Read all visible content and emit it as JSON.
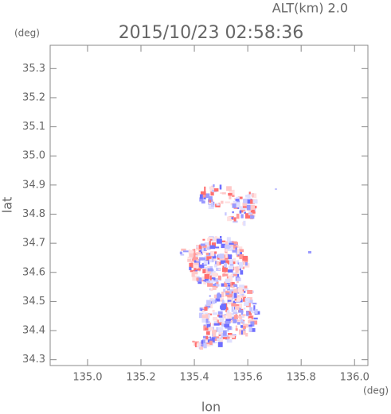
{
  "chart_data": {
    "type": "map",
    "title": "2015/10/23 02:58:36",
    "subtitle": "ALT(km) 2.0",
    "x_label": "lon",
    "y_label": "lat",
    "x_unit": "(deg)",
    "y_unit": "(deg)",
    "xlim": [
      134.86,
      136.05
    ],
    "xticks": [
      {
        "value": 135.0,
        "label": "135.0"
      },
      135.2,
      135.4,
      135.6,
      135.8,
      {
        "value": 136.0,
        "label": "136.0"
      }
    ],
    "ylim": [
      34.28,
      35.38
    ],
    "yticks": [
      34.3,
      34.4,
      34.5,
      34.6,
      34.7,
      34.8,
      34.9,
      {
        "value": 35.0,
        "label": "35.0"
      },
      35.1,
      35.2,
      35.3
    ]
  }
}
